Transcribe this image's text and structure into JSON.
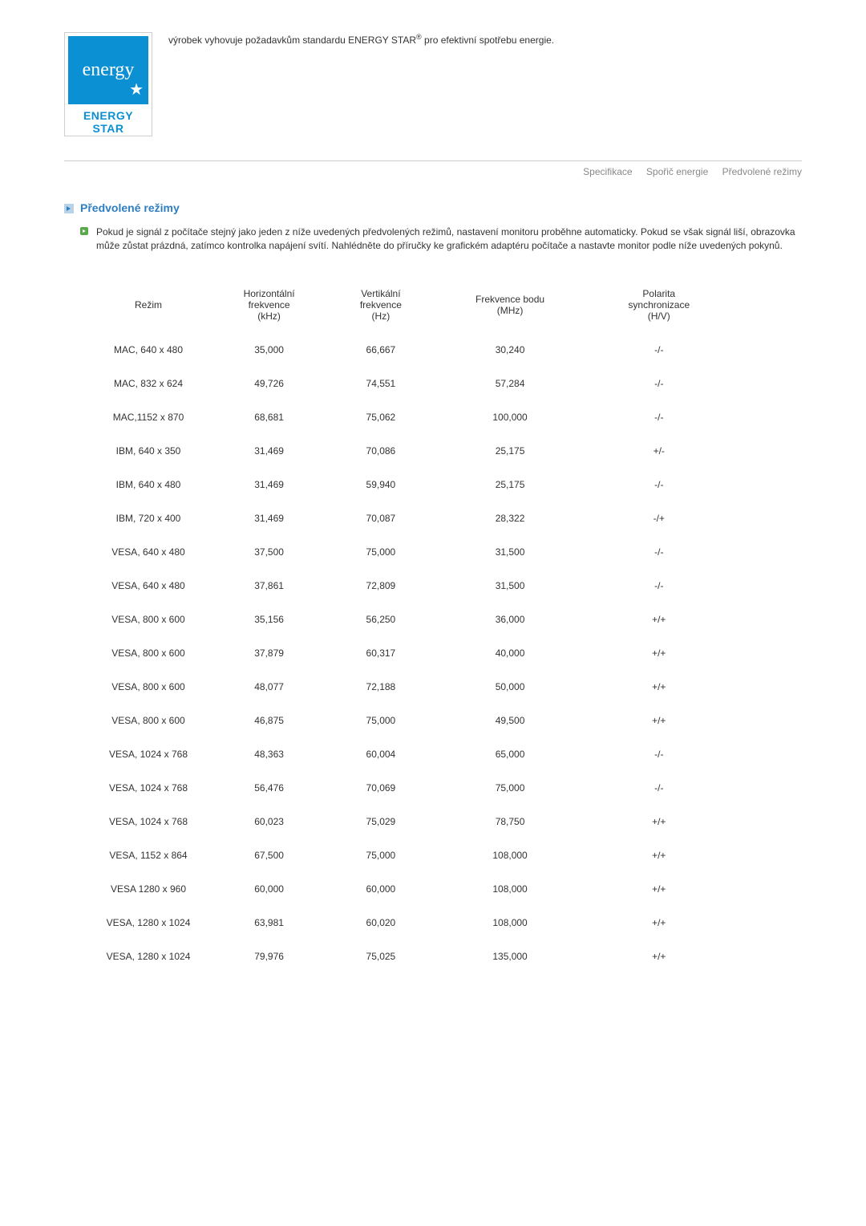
{
  "logo": {
    "script": "energy",
    "bar": "ENERGY STAR",
    "blue": "#0b90d4"
  },
  "energy_text_pre": "výrobek vyhovuje požadavkům standardu ENERGY STAR",
  "energy_text_sup": "®",
  "energy_text_post": " pro efektivní spotřebu energie.",
  "nav": {
    "spec": "Specifikace",
    "saver": "Spořič energie",
    "preset": "Předvolené režimy"
  },
  "heading": "Předvolené režimy",
  "body": "Pokud je signál z počítače stejný jako jeden z níže uvedených předvolených režimů, nastavení monitoru proběhne automaticky. Pokud se však signál liší, obrazovka může zůstat prázdná, zatímco kontrolka napájení svítí. Nahlédněte do příručky ke grafickém adaptéru počítače a nastavte monitor podle níže uvedených pokynů.",
  "table": {
    "headers": {
      "mode": "Režim",
      "hf": "Horizontální\nfrekvence\n(kHz)",
      "vf": "Vertikální\nfrekvence\n(Hz)",
      "pc": "Frekvence bodu\n(MHz)",
      "pol": "Polarita\nsynchronizace\n(H/V)"
    },
    "rows": [
      {
        "m": "MAC, 640 x 480",
        "h": "35,000",
        "v": "66,667",
        "p": "30,240",
        "s": "-/-"
      },
      {
        "m": "MAC, 832 x 624",
        "h": "49,726",
        "v": "74,551",
        "p": "57,284",
        "s": "-/-"
      },
      {
        "m": "MAC,1152 x 870",
        "h": "68,681",
        "v": "75,062",
        "p": "100,000",
        "s": "-/-"
      },
      {
        "m": "IBM, 640 x 350",
        "h": "31,469",
        "v": "70,086",
        "p": "25,175",
        "s": "+/-"
      },
      {
        "m": "IBM, 640 x 480",
        "h": "31,469",
        "v": "59,940",
        "p": "25,175",
        "s": "-/-"
      },
      {
        "m": "IBM, 720 x 400",
        "h": "31,469",
        "v": "70,087",
        "p": "28,322",
        "s": "-/+"
      },
      {
        "m": "VESA, 640 x 480",
        "h": "37,500",
        "v": "75,000",
        "p": "31,500",
        "s": "-/-"
      },
      {
        "m": "VESA, 640 x 480",
        "h": "37,861",
        "v": "72,809",
        "p": "31,500",
        "s": "-/-"
      },
      {
        "m": "VESA, 800 x 600",
        "h": "35,156",
        "v": "56,250",
        "p": "36,000",
        "s": "+/+"
      },
      {
        "m": "VESA, 800 x 600",
        "h": "37,879",
        "v": "60,317",
        "p": "40,000",
        "s": "+/+"
      },
      {
        "m": "VESA, 800 x 600",
        "h": "48,077",
        "v": "72,188",
        "p": "50,000",
        "s": "+/+"
      },
      {
        "m": "VESA, 800 x 600",
        "h": "46,875",
        "v": "75,000",
        "p": "49,500",
        "s": "+/+"
      },
      {
        "m": "VESA, 1024 x 768",
        "h": "48,363",
        "v": "60,004",
        "p": "65,000",
        "s": "-/-"
      },
      {
        "m": "VESA, 1024 x 768",
        "h": "56,476",
        "v": "70,069",
        "p": "75,000",
        "s": "-/-"
      },
      {
        "m": "VESA, 1024 x 768",
        "h": "60,023",
        "v": "75,029",
        "p": "78,750",
        "s": "+/+"
      },
      {
        "m": "VESA, 1152 x 864",
        "h": "67,500",
        "v": "75,000",
        "p": "108,000",
        "s": "+/+"
      },
      {
        "m": "VESA 1280 x 960",
        "h": "60,000",
        "v": "60,000",
        "p": "108,000",
        "s": "+/+"
      },
      {
        "m": "VESA, 1280 x 1024",
        "h": "63,981",
        "v": "60,020",
        "p": "108,000",
        "s": "+/+"
      },
      {
        "m": "VESA, 1280 x 1024",
        "h": "79,976",
        "v": "75,025",
        "p": "135,000",
        "s": "+/+"
      }
    ]
  },
  "colors": {
    "heading": "#2f7ec2",
    "text": "#333333",
    "nav": "#888888",
    "border": "#cccccc"
  }
}
